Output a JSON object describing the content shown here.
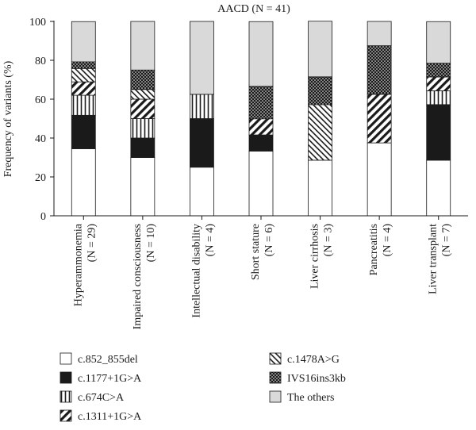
{
  "chart_data": {
    "type": "bar",
    "stacked": true,
    "title": "AACD (N = 41)",
    "xlabel": "",
    "ylabel": "Frequency of variants (%)",
    "ylim": [
      0,
      100
    ],
    "yticks": [
      "0",
      "20",
      "40",
      "60",
      "80",
      "100"
    ],
    "grid": false,
    "legend_position": "bottom",
    "categories": [
      {
        "name": "Hyperammonemia",
        "n": "(N = 29)"
      },
      {
        "name": "Impaired consciousness",
        "n": "(N = 10)"
      },
      {
        "name": "Intellectual disability",
        "n": "(N = 4)"
      },
      {
        "name": "Short stature",
        "n": "(N = 6)"
      },
      {
        "name": "Liver cirrhosis",
        "n": "(N = 3)"
      },
      {
        "name": "Pancreatitis",
        "n": "(N = 4)"
      },
      {
        "name": "Liver transplant",
        "n": "(N = 7)"
      }
    ],
    "series": [
      {
        "name": "c.852_855del",
        "pattern": "white",
        "values": [
          34.5,
          30,
          25,
          33.3,
          28.6,
          37.5,
          28.6
        ]
      },
      {
        "name": "c.1177+1G>A",
        "pattern": "black",
        "values": [
          17.2,
          10,
          25,
          8.3,
          0,
          0,
          28.6
        ]
      },
      {
        "name": "c.674C>A",
        "pattern": "vertical",
        "values": [
          10.3,
          10,
          12.5,
          0,
          0,
          0,
          7.1
        ]
      },
      {
        "name": "c.1311+1G>A",
        "pattern": "diagonal-up",
        "values": [
          6.9,
          10,
          0,
          8.3,
          0,
          25,
          7.1
        ]
      },
      {
        "name": "c.1478A>G",
        "pattern": "diagonal-down",
        "values": [
          6.9,
          5,
          0,
          0,
          28.6,
          0,
          0
        ]
      },
      {
        "name": "IVS16ins3kb",
        "pattern": "dots",
        "values": [
          3.4,
          10,
          0,
          16.7,
          14.3,
          25,
          7.1
        ]
      },
      {
        "name": "The others",
        "pattern": "gray",
        "values": [
          20.7,
          25,
          37.5,
          33.3,
          28.6,
          12.5,
          21.4
        ]
      }
    ]
  },
  "colors": {
    "black": "#1a1a1a",
    "gray": "#d9d9d9",
    "white": "#ffffff"
  }
}
